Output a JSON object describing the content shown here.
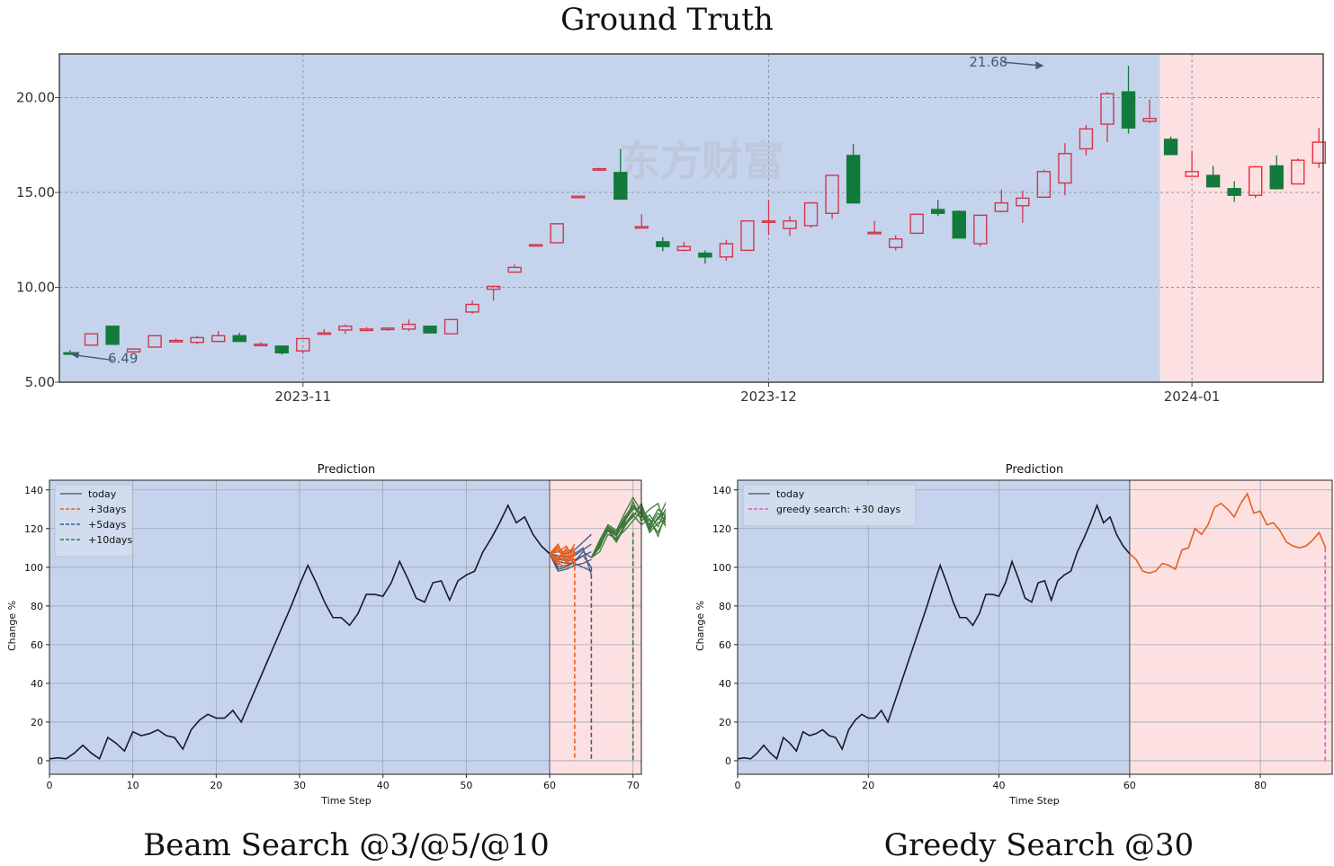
{
  "titles": {
    "top": "Ground Truth",
    "left_caption": "Beam Search @3/@5/@10",
    "right_caption": "Greedy Search @30"
  },
  "colors": {
    "history_bg": "#c5d4ec",
    "future_bg": "#fde1e2",
    "up": "#d0374c",
    "down": "#127a3a",
    "orange": "#e8601c",
    "blue": "#3d5a8a",
    "green": "#3c7a3a",
    "pink": "#e855c0",
    "black": "#1a1a2a"
  },
  "chart_data": [
    {
      "type": "candlestick",
      "title": "Ground Truth",
      "watermark": "东方财富",
      "ylim": [
        5,
        22.3
      ],
      "yticks": [
        5,
        10,
        15,
        20
      ],
      "ytick_labels": [
        "5.00",
        "10.00",
        "15.00",
        "20.00"
      ],
      "xtick_labels": [
        "2023-11",
        "2023-12",
        "2024-01"
      ],
      "xtick_positions": [
        11,
        33,
        53
      ],
      "future_start_index": 51.5,
      "annotations": [
        {
          "text": "6.49",
          "index": 0,
          "value": 6.49
        },
        {
          "text": "21.68",
          "index": 46,
          "value": 21.68
        }
      ],
      "candles": [
        [
          6.55,
          6.7,
          6.5,
          6.5
        ],
        [
          6.95,
          7.55,
          6.95,
          7.55
        ],
        [
          7.95,
          7.95,
          7.0,
          7.0
        ],
        [
          6.6,
          6.75,
          6.6,
          6.75
        ],
        [
          6.85,
          7.45,
          6.85,
          7.45
        ],
        [
          7.15,
          7.3,
          7.1,
          7.2
        ],
        [
          7.1,
          7.45,
          7.0,
          7.35
        ],
        [
          7.15,
          7.7,
          7.1,
          7.45
        ],
        [
          7.45,
          7.6,
          7.15,
          7.15
        ],
        [
          7.0,
          7.1,
          6.9,
          7.0
        ],
        [
          6.9,
          6.9,
          6.45,
          6.55
        ],
        [
          6.65,
          7.3,
          6.5,
          7.3
        ],
        [
          7.55,
          7.8,
          7.5,
          7.6
        ],
        [
          7.75,
          8.05,
          7.55,
          7.95
        ],
        [
          7.75,
          7.9,
          7.7,
          7.8
        ],
        [
          7.8,
          7.9,
          7.7,
          7.85
        ],
        [
          7.8,
          8.3,
          7.7,
          8.05
        ],
        [
          7.95,
          7.95,
          7.55,
          7.6
        ],
        [
          7.55,
          8.3,
          7.55,
          8.3
        ],
        [
          8.7,
          9.3,
          8.6,
          9.1
        ],
        [
          9.9,
          10.1,
          9.3,
          10.05
        ],
        [
          10.8,
          11.2,
          10.8,
          11.05
        ],
        [
          12.2,
          12.25,
          12.2,
          12.25
        ],
        [
          12.35,
          13.4,
          12.35,
          13.35
        ],
        [
          14.75,
          14.8,
          14.7,
          14.8
        ],
        [
          16.25,
          16.3,
          16.2,
          16.25
        ],
        [
          16.05,
          17.3,
          14.65,
          14.65
        ],
        [
          13.2,
          13.85,
          13.2,
          13.2
        ],
        [
          12.4,
          12.65,
          11.9,
          12.15
        ],
        [
          11.95,
          12.4,
          11.9,
          12.15
        ],
        [
          11.8,
          11.95,
          11.25,
          11.6
        ],
        [
          11.6,
          12.5,
          11.4,
          12.3
        ],
        [
          11.95,
          13.5,
          11.95,
          13.5
        ],
        [
          13.5,
          14.6,
          12.75,
          13.5
        ],
        [
          13.1,
          13.75,
          12.7,
          13.5
        ],
        [
          13.25,
          14.5,
          13.15,
          14.45
        ],
        [
          13.9,
          15.9,
          13.6,
          15.9
        ],
        [
          16.95,
          17.55,
          14.45,
          14.45
        ],
        [
          12.9,
          13.5,
          12.85,
          12.9
        ],
        [
          12.1,
          12.75,
          11.95,
          12.55
        ],
        [
          12.85,
          13.85,
          12.85,
          13.85
        ],
        [
          14.1,
          14.6,
          13.75,
          13.9
        ],
        [
          14.0,
          14.05,
          12.6,
          12.6
        ],
        [
          12.3,
          13.8,
          12.15,
          13.8
        ],
        [
          14.0,
          15.15,
          13.95,
          14.45
        ],
        [
          14.3,
          15.1,
          13.4,
          14.7
        ],
        [
          14.75,
          16.2,
          14.75,
          16.1
        ],
        [
          15.5,
          17.6,
          14.85,
          17.05
        ],
        [
          17.3,
          18.55,
          16.95,
          18.35
        ],
        [
          18.6,
          20.3,
          17.65,
          20.2
        ],
        [
          20.3,
          21.68,
          18.1,
          18.4
        ],
        [
          18.75,
          19.9,
          18.65,
          18.9
        ],
        [
          17.8,
          17.95,
          17.0,
          17.0
        ],
        [
          15.85,
          17.2,
          15.85,
          16.1
        ],
        [
          15.9,
          16.4,
          15.3,
          15.3
        ],
        [
          15.2,
          15.6,
          14.5,
          14.85
        ],
        [
          14.85,
          16.4,
          14.7,
          16.35
        ],
        [
          16.4,
          16.95,
          15.15,
          15.2
        ],
        [
          15.45,
          16.8,
          15.45,
          16.7
        ],
        [
          16.55,
          18.4,
          16.3,
          17.65
        ]
      ]
    },
    {
      "type": "line",
      "title": "Prediction",
      "xlabel": "Time Step",
      "ylabel": "Change %",
      "xlim": [
        0,
        71
      ],
      "ylim": [
        -7,
        145
      ],
      "xticks": [
        0,
        10,
        20,
        30,
        40,
        50,
        60,
        70
      ],
      "yticks": [
        0,
        20,
        40,
        60,
        80,
        100,
        120,
        140
      ],
      "today_index": 60,
      "legend": [
        "today",
        "+3days",
        "+5days",
        "+10days"
      ],
      "series": [
        {
          "name": "history",
          "values": [
            1,
            1.5,
            1,
            4,
            8,
            4,
            1,
            12,
            9,
            5,
            15,
            13,
            14,
            16,
            13,
            12,
            6,
            16,
            21,
            24,
            22,
            22,
            26,
            20,
            30,
            40,
            50,
            60,
            70,
            80,
            91,
            101,
            92,
            82,
            74,
            74,
            70,
            76,
            86,
            86,
            85,
            92,
            103,
            94,
            84,
            82,
            92,
            93,
            83,
            93,
            96,
            98,
            108,
            115,
            123,
            132,
            123,
            126,
            117,
            111,
            107
          ]
        },
        {
          "name": "+3days",
          "start": 60,
          "paths": [
            [
              107,
              104,
              110,
              106
            ],
            [
              107,
              112,
              103,
              108
            ],
            [
              107,
              103,
              108,
              110
            ],
            [
              107,
              109,
              105,
              112
            ],
            [
              107,
              101,
              106,
              104
            ],
            [
              107,
              108,
              111,
              103
            ],
            [
              107,
              110,
              102,
              107
            ],
            [
              107,
              105,
              109,
              100
            ],
            [
              107,
              102,
              100,
              109
            ],
            [
              107,
              111,
              106,
              102
            ]
          ],
          "end": 63
        },
        {
          "name": "+5days",
          "start": 60,
          "paths": [
            [
              107,
              98,
              99,
              101,
              102,
              104
            ],
            [
              107,
              100,
              101,
              103,
              106,
              108
            ],
            [
              107,
              104,
              104,
              106,
              109,
              112
            ],
            [
              107,
              108,
              107,
              109,
              113,
              117
            ],
            [
              107,
              103,
              102,
              102,
              100,
              98
            ],
            [
              107,
              106,
              105,
              107,
              110,
              96
            ],
            [
              107,
              99,
              100,
              103,
              108,
              105
            ],
            [
              107,
              105,
              103,
              104,
              106,
              100
            ]
          ],
          "end": 65
        },
        {
          "name": "+10days",
          "start": 65,
          "paths": [
            [
              105,
              113,
              121,
              118,
              126,
              132,
              128,
              120,
              125,
              134,
              126
            ],
            [
              105,
              112,
              120,
              116,
              124,
              130,
              131,
              124,
              118,
              127,
              118
            ],
            [
              105,
              111,
              119,
              117,
              123,
              134,
              124,
              127,
              121,
              131,
              133
            ],
            [
              105,
              114,
              122,
              119,
              128,
              136,
              129,
              118,
              123,
              125,
              124
            ],
            [
              105,
              110,
              120,
              114,
              122,
              128,
              126,
              130,
              133,
              120,
              136
            ],
            [
              105,
              113,
              121,
              116,
              125,
              130,
              131,
              119,
              126,
              121,
              120
            ],
            [
              105,
              108,
              117,
              115,
              119,
              124,
              129,
              122,
              130,
              126,
              113
            ],
            [
              105,
              111,
              119,
              113,
              121,
              127,
              122,
              125,
              116,
              129,
              109
            ],
            [
              105,
              113,
              121,
              118,
              122,
              126,
              133,
              121,
              128,
              123,
              127
            ],
            [
              105,
              112,
              121,
              117,
              126,
              131,
              127,
              120,
              125,
              130,
              116
            ]
          ],
          "end": 70
        }
      ]
    },
    {
      "type": "line",
      "title": "Prediction",
      "xlabel": "Time Step",
      "ylabel": "Change %",
      "xlim": [
        0,
        91
      ],
      "ylim": [
        -7,
        145
      ],
      "xticks": [
        0,
        20,
        40,
        60,
        80
      ],
      "yticks": [
        0,
        20,
        40,
        60,
        80,
        100,
        120,
        140
      ],
      "today_index": 60,
      "legend": [
        "today",
        "greedy search: +30 days"
      ],
      "series": [
        {
          "name": "history",
          "values": [
            1,
            1.5,
            1,
            4,
            8,
            4,
            1,
            12,
            9,
            5,
            15,
            13,
            14,
            16,
            13,
            12,
            6,
            16,
            21,
            24,
            22,
            22,
            26,
            20,
            30,
            40,
            50,
            60,
            70,
            80,
            91,
            101,
            92,
            82,
            74,
            74,
            70,
            76,
            86,
            86,
            85,
            92,
            103,
            94,
            84,
            82,
            92,
            93,
            83,
            93,
            96,
            98,
            108,
            115,
            123,
            132,
            123,
            126,
            117,
            111,
            107
          ]
        },
        {
          "name": "greedy search: +30 days",
          "start": 60,
          "values": [
            107,
            104,
            98,
            97,
            98,
            102,
            101,
            99,
            109,
            110,
            120,
            117,
            122,
            131,
            133,
            130,
            126,
            133,
            138,
            128,
            129,
            122,
            123,
            119,
            113,
            111,
            110,
            111,
            114,
            118,
            110
          ],
          "end": 90
        }
      ]
    }
  ]
}
